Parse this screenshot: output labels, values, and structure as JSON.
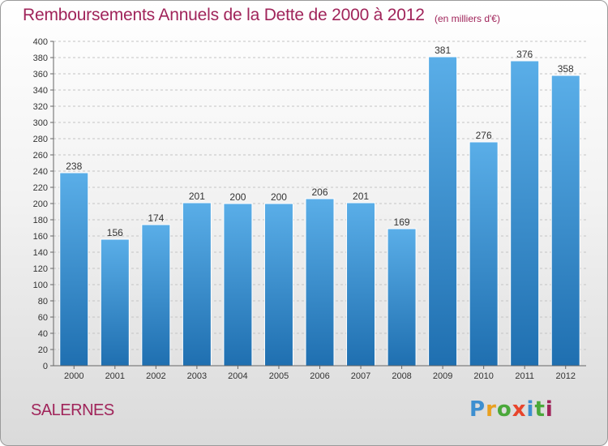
{
  "header": {
    "title": "Remboursements Annuels de la Dette de 2000 à 2012",
    "unit": "(en milliers d'€)"
  },
  "footer": {
    "place": "SALERNES",
    "logo": "Proxiti"
  },
  "colors": {
    "title": "#a0245a",
    "bar_top": "#5aaee8",
    "bar_bottom": "#1f6fb0"
  },
  "chart_data": {
    "type": "bar",
    "title": "Remboursements Annuels de la Dette de 2000 à 2012",
    "ylabel": "",
    "xlabel": "",
    "categories": [
      "2000",
      "2001",
      "2002",
      "2003",
      "2004",
      "2005",
      "2006",
      "2007",
      "2008",
      "2009",
      "2010",
      "2011",
      "2012"
    ],
    "values": [
      238,
      156,
      174,
      201,
      200,
      200,
      206,
      201,
      169,
      381,
      276,
      376,
      358
    ],
    "ylim": [
      0,
      400
    ],
    "yticks": [
      0,
      20,
      40,
      60,
      80,
      100,
      120,
      140,
      160,
      180,
      200,
      220,
      240,
      260,
      280,
      300,
      320,
      340,
      360,
      380,
      400
    ],
    "grid": true,
    "data_labels": true
  }
}
